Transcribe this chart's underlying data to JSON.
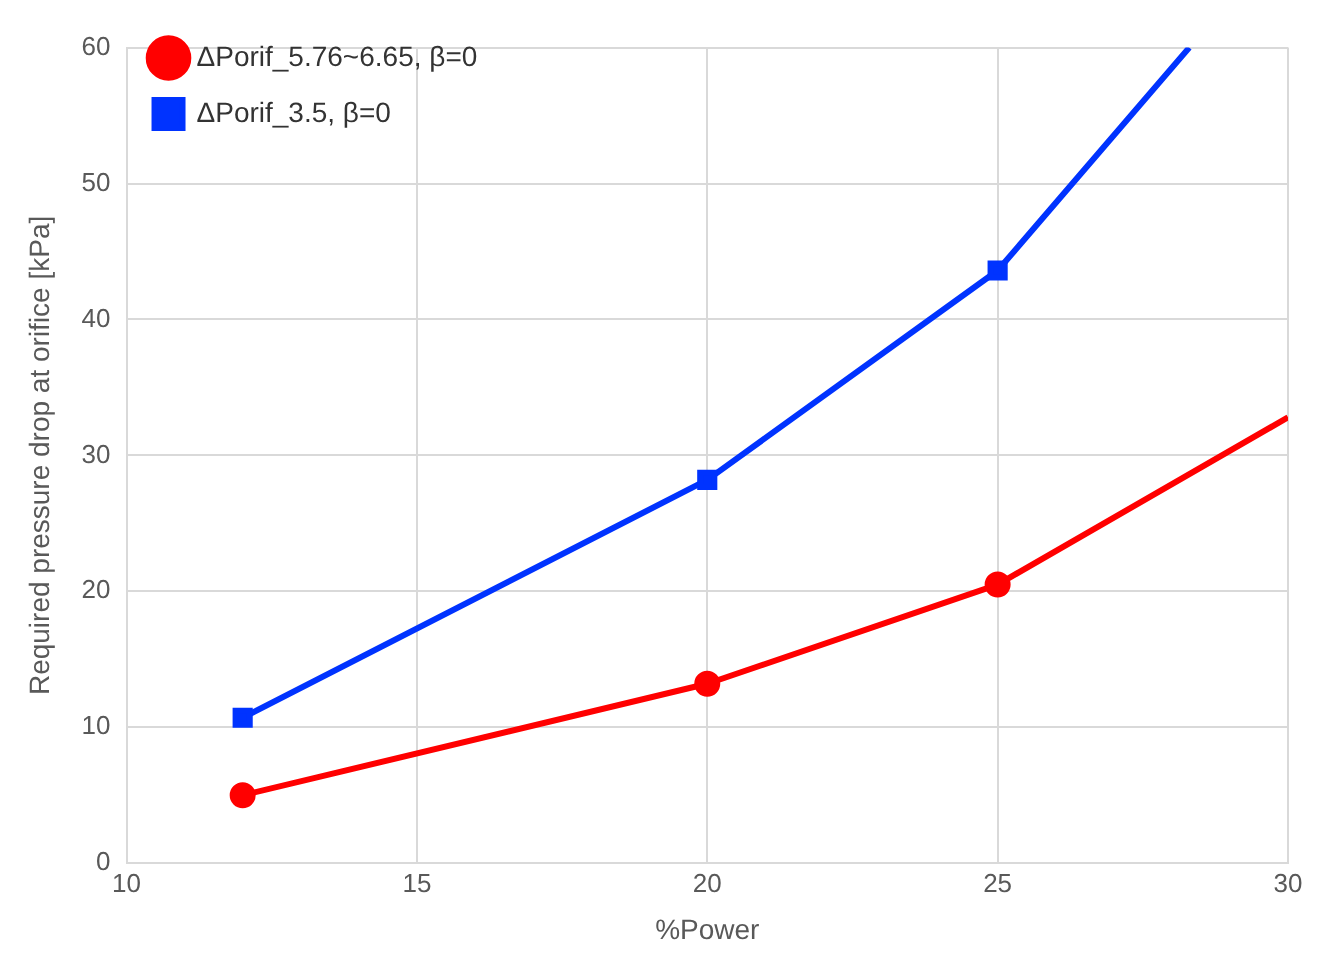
{
  "chart_data": {
    "type": "line",
    "xlabel": "%Power",
    "ylabel": "Required pressure drop at orifice [kPa]",
    "xlim": [
      10,
      30
    ],
    "xticks": [
      10,
      15,
      20,
      25,
      30
    ],
    "ylim": [
      0,
      60
    ],
    "yticks": [
      0,
      10,
      20,
      30,
      40,
      50,
      60
    ],
    "grid": true,
    "legend": "top left",
    "series": [
      {
        "name": "ΔPorif_5.76~6.65, β=0",
        "color": "#ff0000",
        "marker": "circle",
        "x": [
          12,
          20,
          25,
          30
        ],
        "values": [
          5.0,
          13.2,
          20.5,
          32.8
        ]
      },
      {
        "name": "ΔPorif_3.5, β=0",
        "color": "#0033ff",
        "marker": "square",
        "x": [
          12,
          20,
          25,
          28.3
        ],
        "values": [
          10.7,
          28.2,
          43.6,
          60
        ]
      }
    ]
  }
}
